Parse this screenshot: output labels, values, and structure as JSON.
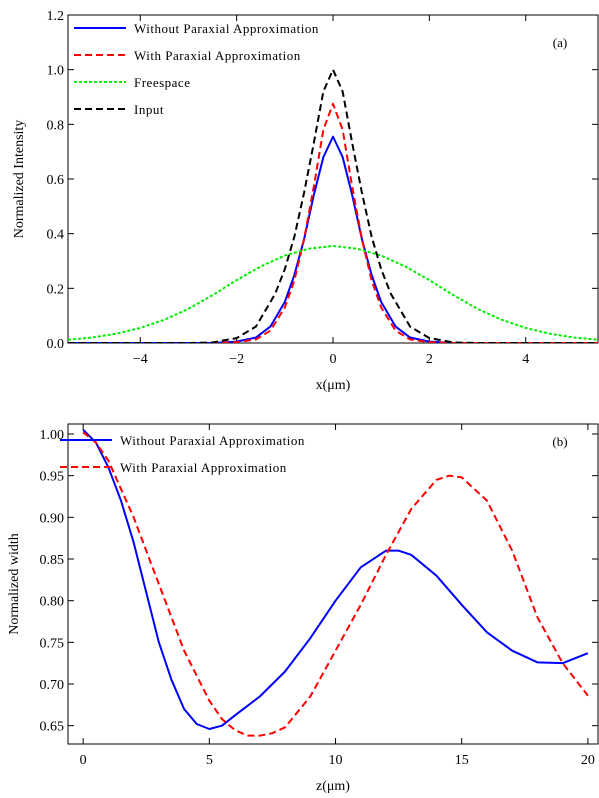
{
  "chart_data": [
    {
      "type": "line",
      "panel_label": "(a)",
      "xlabel": "x(μm)",
      "ylabel": "Normalized Intensity",
      "xlim": [
        -5.5,
        5.5
      ],
      "ylim": [
        0,
        1.2
      ],
      "xticks": [
        -4,
        -2,
        0,
        2,
        4
      ],
      "xtick_labels": [
        "−4",
        "−2",
        "0",
        "2",
        "4"
      ],
      "yticks": [
        0.0,
        0.2,
        0.4,
        0.6,
        0.8,
        1.0,
        1.2
      ],
      "ytick_labels": [
        "0.0",
        "0.2",
        "0.4",
        "0.6",
        "0.8",
        "1.0",
        "1.2"
      ],
      "legend_position": "top-left",
      "grid": false,
      "series": [
        {
          "name": "Without Paraxial Approximation",
          "color": "#0000ff",
          "dash": "solid",
          "x": [
            -5.5,
            -2.5,
            -2.0,
            -1.6,
            -1.3,
            -1.0,
            -0.8,
            -0.6,
            -0.4,
            -0.2,
            0.0,
            0.2,
            0.4,
            0.6,
            0.8,
            1.0,
            1.3,
            1.6,
            2.0,
            2.5,
            5.5
          ],
          "y": [
            0.0,
            0.0,
            0.005,
            0.02,
            0.06,
            0.15,
            0.25,
            0.38,
            0.54,
            0.68,
            0.755,
            0.68,
            0.54,
            0.38,
            0.25,
            0.15,
            0.06,
            0.02,
            0.005,
            0.0,
            0.0
          ]
        },
        {
          "name": "With Paraxial Approximation",
          "color": "#ff0000",
          "dash": "dashed",
          "x": [
            -5.5,
            -2.5,
            -2.0,
            -1.6,
            -1.3,
            -1.0,
            -0.8,
            -0.6,
            -0.4,
            -0.2,
            0.0,
            0.2,
            0.4,
            0.6,
            0.8,
            1.0,
            1.3,
            1.6,
            2.0,
            2.5,
            5.5
          ],
          "y": [
            0.0,
            0.0,
            0.003,
            0.013,
            0.045,
            0.13,
            0.23,
            0.38,
            0.57,
            0.78,
            0.875,
            0.78,
            0.57,
            0.38,
            0.23,
            0.13,
            0.045,
            0.013,
            0.003,
            0.0,
            0.0
          ]
        },
        {
          "name": "Freespace",
          "color": "#00ee00",
          "dash": "dotted",
          "x": [
            -5.5,
            -5.0,
            -4.5,
            -4.0,
            -3.5,
            -3.0,
            -2.5,
            -2.0,
            -1.5,
            -1.0,
            -0.5,
            0.0,
            0.5,
            1.0,
            1.5,
            2.0,
            2.5,
            3.0,
            3.5,
            4.0,
            4.5,
            5.0,
            5.5
          ],
          "y": [
            0.012,
            0.02,
            0.034,
            0.055,
            0.085,
            0.125,
            0.175,
            0.23,
            0.28,
            0.32,
            0.345,
            0.355,
            0.345,
            0.32,
            0.28,
            0.23,
            0.175,
            0.125,
            0.085,
            0.055,
            0.034,
            0.02,
            0.012
          ]
        },
        {
          "name": "Input",
          "color": "#000000",
          "dash": "dashed",
          "x": [
            -5.5,
            -3.0,
            -2.5,
            -2.0,
            -1.6,
            -1.2,
            -1.0,
            -0.8,
            -0.6,
            -0.4,
            -0.2,
            0.0,
            0.2,
            0.4,
            0.6,
            0.8,
            1.0,
            1.2,
            1.6,
            2.0,
            2.5,
            3.0,
            5.5
          ],
          "y": [
            0.0,
            0.0,
            0.002,
            0.018,
            0.06,
            0.18,
            0.27,
            0.39,
            0.55,
            0.73,
            0.92,
            1.0,
            0.92,
            0.73,
            0.55,
            0.39,
            0.27,
            0.18,
            0.06,
            0.018,
            0.002,
            0.0,
            0.0
          ]
        }
      ]
    },
    {
      "type": "line",
      "panel_label": "(b)",
      "xlabel": "z(μm)",
      "ylabel": "Normalized width",
      "xlim": [
        -0.6,
        20.4
      ],
      "ylim": [
        0.628,
        1.012
      ],
      "xticks": [
        0,
        5,
        10,
        15,
        20
      ],
      "xtick_labels": [
        "0",
        "5",
        "10",
        "15",
        "20"
      ],
      "yticks": [
        0.65,
        0.7,
        0.75,
        0.8,
        0.85,
        0.9,
        0.95,
        1.0
      ],
      "ytick_labels": [
        "0.65",
        "0.70",
        "0.75",
        "0.80",
        "0.85",
        "0.90",
        "0.95",
        "1.00"
      ],
      "legend_position": "top-center",
      "grid": false,
      "series": [
        {
          "name": "Without Paraxial Approximation",
          "color": "#0000ff",
          "dash": "solid",
          "x": [
            0,
            0.5,
            1,
            1.5,
            2,
            2.5,
            3,
            3.5,
            4,
            4.5,
            5,
            5.5,
            6,
            7,
            8,
            9,
            10,
            11,
            12,
            12.5,
            13,
            14,
            15,
            16,
            17,
            18,
            19,
            20
          ],
          "y": [
            1.005,
            0.99,
            0.96,
            0.92,
            0.87,
            0.81,
            0.75,
            0.705,
            0.67,
            0.652,
            0.646,
            0.65,
            0.662,
            0.685,
            0.715,
            0.755,
            0.8,
            0.84,
            0.86,
            0.86,
            0.855,
            0.83,
            0.795,
            0.762,
            0.74,
            0.726,
            0.725,
            0.737
          ]
        },
        {
          "name": "With Paraxial Approximation",
          "color": "#ff0000",
          "dash": "dashed",
          "x": [
            0,
            0.5,
            1,
            2,
            3,
            4,
            5,
            5.5,
            6,
            6.5,
            7,
            7.5,
            8,
            9,
            10,
            11,
            12,
            13,
            14,
            14.5,
            15,
            16,
            17,
            18,
            19,
            20
          ],
          "y": [
            1.002,
            0.99,
            0.968,
            0.9,
            0.82,
            0.74,
            0.68,
            0.658,
            0.645,
            0.638,
            0.638,
            0.641,
            0.648,
            0.685,
            0.74,
            0.795,
            0.855,
            0.91,
            0.945,
            0.95,
            0.948,
            0.92,
            0.86,
            0.78,
            0.725,
            0.686
          ]
        }
      ]
    }
  ]
}
